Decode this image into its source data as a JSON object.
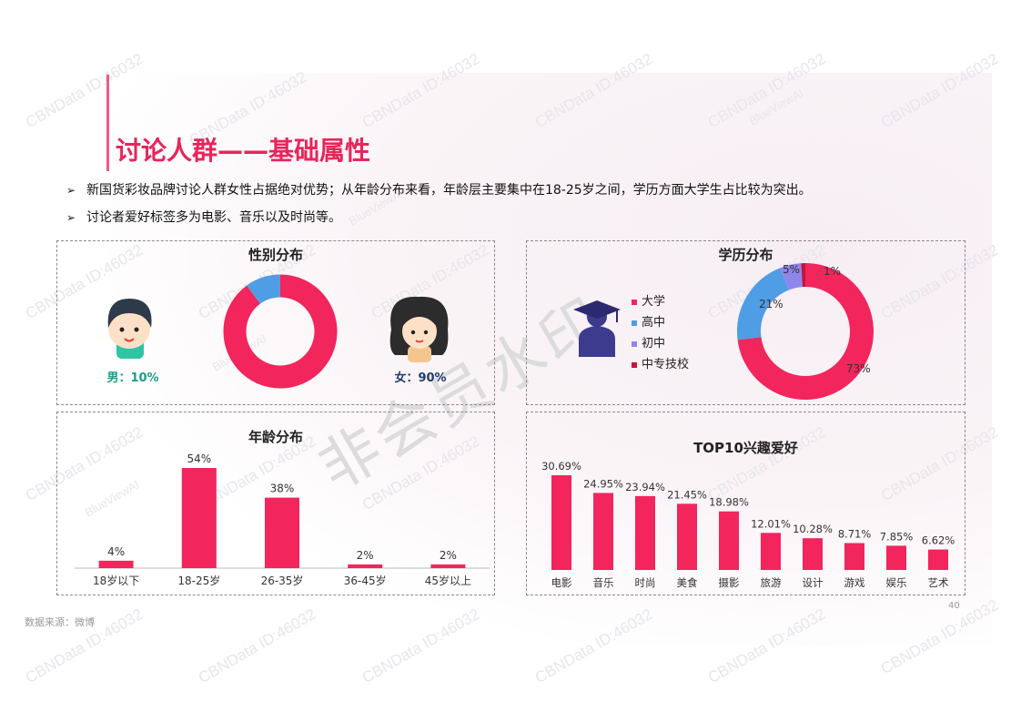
{
  "watermark_text": "CBNData ID:46032",
  "watermark_brand": "BlueViewAI",
  "watermark_big": "非会员水印",
  "title": "讨论人群——基础属性",
  "bullets": [
    "新国货彩妆品牌讨论人群女性占据绝对优势；从年龄分布来看，年龄层主要集中在18-25岁之间，学历方面大学生占比较为突出。",
    "讨论者爱好标签多为电影、音乐以及时尚等。"
  ],
  "colors": {
    "accent": "#f2255c",
    "blue": "#4f9de4",
    "purple": "#8f86ec",
    "darkred": "#c4143c",
    "gray": "#d9d9d9"
  },
  "chart_data": [
    {
      "type": "pie",
      "title": "性别分布",
      "labels": [
        "男：10%",
        "女：90%"
      ],
      "categories": [
        "男",
        "女"
      ],
      "values": [
        10,
        90
      ]
    },
    {
      "type": "pie",
      "title": "学历分布",
      "categories": [
        "大学",
        "高中",
        "初中",
        "中专技校"
      ],
      "values": [
        73,
        21,
        5,
        1
      ],
      "data_labels": [
        "73%",
        "21%",
        "5%",
        "1%"
      ]
    },
    {
      "type": "bar",
      "title": "年龄分布",
      "categories": [
        "18岁以下",
        "18-25岁",
        "26-35岁",
        "36-45岁",
        "45岁以上"
      ],
      "values": [
        4,
        54,
        38,
        2,
        2
      ],
      "data_labels": [
        "4%",
        "54%",
        "38%",
        "2%",
        "2%"
      ]
    },
    {
      "type": "bar",
      "title": "TOP10兴趣爱好",
      "categories": [
        "电影",
        "音乐",
        "时尚",
        "美食",
        "摄影",
        "旅游",
        "设计",
        "游戏",
        "娱乐",
        "艺术"
      ],
      "values": [
        30.69,
        24.95,
        23.94,
        21.45,
        18.98,
        12.01,
        10.28,
        8.71,
        7.85,
        6.62
      ],
      "data_labels": [
        "30.69%",
        "24.95%",
        "23.94%",
        "21.45%",
        "18.98%",
        "12.01%",
        "10.28%",
        "8.71%",
        "7.85%",
        "6.62%"
      ]
    }
  ],
  "source": "数据来源：微博",
  "page_number": "40"
}
